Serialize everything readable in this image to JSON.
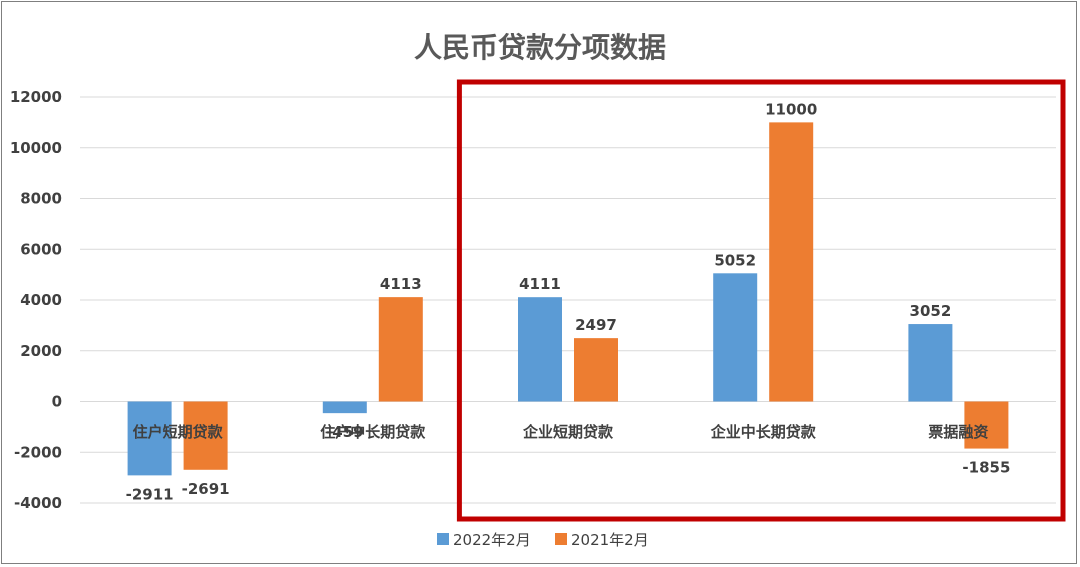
{
  "chart_data": {
    "type": "bar",
    "title": "人民币贷款分项数据",
    "categories": [
      "住户短期贷款",
      "住户中长期贷款",
      "企业短期贷款",
      "企业中长期贷款",
      "票据融资"
    ],
    "series": [
      {
        "name": "2022年2月",
        "color": "#5b9bd5",
        "values": [
          -2911,
          -459,
          4111,
          5052,
          3052
        ]
      },
      {
        "name": "2021年2月",
        "color": "#ed7d31",
        "values": [
          -2691,
          4113,
          2497,
          11000,
          -1855
        ]
      }
    ],
    "ylim": [
      -4000,
      12000
    ],
    "yticks": [
      12000,
      10000,
      8000,
      6000,
      4000,
      2000,
      0,
      -2000,
      -4000
    ],
    "grid": true,
    "legend_position": "bottom",
    "highlight": {
      "color": "#c00000",
      "covers": [
        "企业短期贷款",
        "企业中长期贷款",
        "票据融资"
      ]
    }
  }
}
